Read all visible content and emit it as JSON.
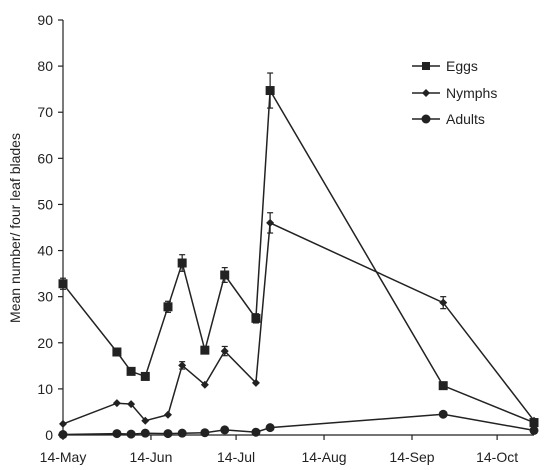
{
  "chart_data": {
    "type": "line",
    "title": "",
    "xlabel": "",
    "ylabel": "Mean number/ four leaf blades",
    "ylim": [
      0,
      90
    ],
    "yticks": [
      0,
      10,
      20,
      30,
      40,
      50,
      60,
      70,
      80,
      90
    ],
    "xlim": [
      "2010-05-14",
      "2010-10-27"
    ],
    "xticks": [
      {
        "date": "2010-05-14",
        "label": "14-May"
      },
      {
        "date": "2010-06-14",
        "label": "14-Jun"
      },
      {
        "date": "2010-07-14",
        "label": "14-Jul"
      },
      {
        "date": "2010-08-14",
        "label": "14-Aug"
      },
      {
        "date": "2010-09-14",
        "label": "14-Sep"
      },
      {
        "date": "2010-10-14",
        "label": "14-Oct"
      }
    ],
    "grid": false,
    "legend_position": "top-right",
    "series": [
      {
        "name": "Eggs",
        "marker": "square",
        "points": [
          {
            "x": "2010-05-14",
            "y": 32.8,
            "err": 1.2
          },
          {
            "x": "2010-06-02",
            "y": 18.0,
            "err": 0.5
          },
          {
            "x": "2010-06-07",
            "y": 13.8,
            "err": 0.5
          },
          {
            "x": "2010-06-12",
            "y": 12.7,
            "err": 0.5
          },
          {
            "x": "2010-06-20",
            "y": 27.8,
            "err": 1.2
          },
          {
            "x": "2010-06-25",
            "y": 37.3,
            "err": 1.8
          },
          {
            "x": "2010-07-03",
            "y": 18.4,
            "err": 0.7
          },
          {
            "x": "2010-07-10",
            "y": 34.7,
            "err": 1.6
          },
          {
            "x": "2010-07-21",
            "y": 25.3,
            "err": 1.0
          },
          {
            "x": "2010-07-26",
            "y": 74.7,
            "err": 3.8
          },
          {
            "x": "2010-09-25",
            "y": 10.7,
            "err": 0.5
          },
          {
            "x": "2010-10-27",
            "y": 2.7,
            "err": 0.5
          }
        ]
      },
      {
        "name": "Nymphs",
        "marker": "diamond",
        "points": [
          {
            "x": "2010-05-14",
            "y": 2.4,
            "err": 0
          },
          {
            "x": "2010-06-02",
            "y": 6.9,
            "err": 0
          },
          {
            "x": "2010-06-07",
            "y": 6.7,
            "err": 0
          },
          {
            "x": "2010-06-12",
            "y": 3.1,
            "err": 0
          },
          {
            "x": "2010-06-20",
            "y": 4.4,
            "err": 0
          },
          {
            "x": "2010-06-25",
            "y": 15.1,
            "err": 0.8
          },
          {
            "x": "2010-07-03",
            "y": 10.9,
            "err": 0
          },
          {
            "x": "2010-07-10",
            "y": 18.2,
            "err": 1.0
          },
          {
            "x": "2010-07-21",
            "y": 11.3,
            "err": 0
          },
          {
            "x": "2010-07-26",
            "y": 46.0,
            "err": 2.2
          },
          {
            "x": "2010-09-25",
            "y": 28.7,
            "err": 1.3
          },
          {
            "x": "2010-10-27",
            "y": 3.1,
            "err": 0
          }
        ]
      },
      {
        "name": "Adults",
        "marker": "circle",
        "points": [
          {
            "x": "2010-05-14",
            "y": 0.1,
            "err": 0
          },
          {
            "x": "2010-06-02",
            "y": 0.3,
            "err": 0
          },
          {
            "x": "2010-06-07",
            "y": 0.2,
            "err": 0
          },
          {
            "x": "2010-06-12",
            "y": 0.4,
            "err": 0
          },
          {
            "x": "2010-06-20",
            "y": 0.3,
            "err": 0
          },
          {
            "x": "2010-06-25",
            "y": 0.4,
            "err": 0
          },
          {
            "x": "2010-07-03",
            "y": 0.5,
            "err": 0
          },
          {
            "x": "2010-07-10",
            "y": 1.1,
            "err": 0
          },
          {
            "x": "2010-07-21",
            "y": 0.6,
            "err": 0
          },
          {
            "x": "2010-07-26",
            "y": 1.6,
            "err": 0
          },
          {
            "x": "2010-09-25",
            "y": 4.5,
            "err": 0
          },
          {
            "x": "2010-10-27",
            "y": 1.0,
            "err": 0
          }
        ]
      }
    ],
    "colors": {
      "line": "#222222",
      "marker": "#222222",
      "axis": "#222222",
      "background": "#ffffff"
    }
  }
}
